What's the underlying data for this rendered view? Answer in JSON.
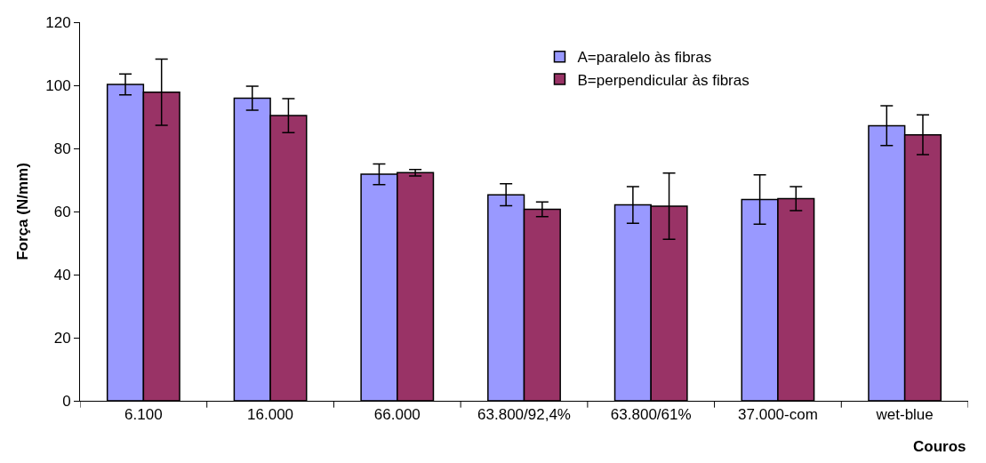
{
  "chart_data": {
    "type": "bar",
    "xlabel": "Couros",
    "ylabel": "Força (N/mm)",
    "categories": [
      "6.100",
      "16.000",
      "66.000",
      "63.800/92,4%",
      "63.800/61%",
      "37.000-com",
      "wet-blue"
    ],
    "series": [
      {
        "name": "A=paralelo às fibras",
        "color": "#9999ff",
        "values": [
          100.3,
          95.9,
          71.8,
          65.3,
          62.1,
          63.8,
          87.2
        ],
        "errors": [
          3.3,
          3.8,
          3.3,
          3.5,
          5.8,
          7.8,
          6.3
        ]
      },
      {
        "name": "B=perpendicular às fibras",
        "color": "#993366",
        "values": [
          97.8,
          90.4,
          72.3,
          60.7,
          61.7,
          64.1,
          84.3
        ],
        "errors": [
          10.5,
          5.4,
          1.0,
          2.3,
          10.5,
          3.8,
          6.3
        ]
      }
    ],
    "ylim": [
      0,
      120
    ],
    "yticks": [
      0,
      20,
      40,
      60,
      80,
      100,
      120
    ],
    "legend": "top right"
  }
}
